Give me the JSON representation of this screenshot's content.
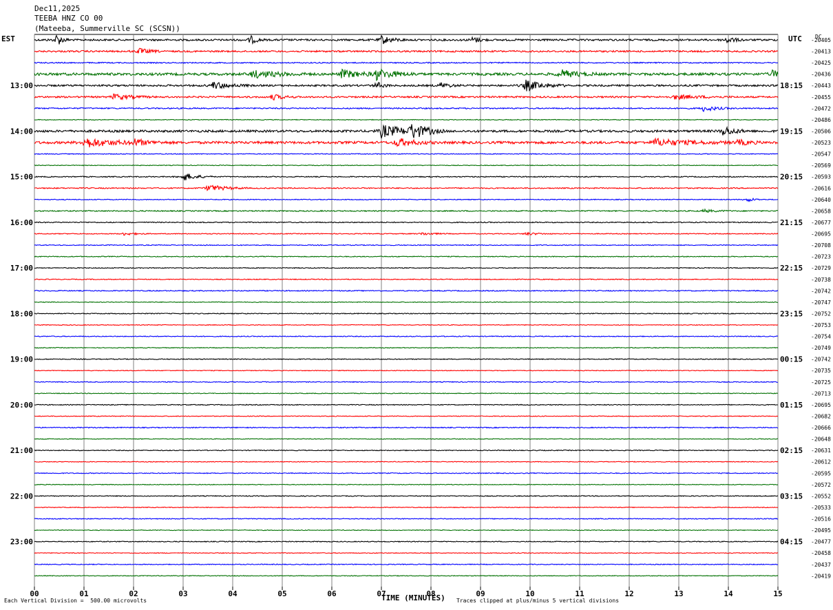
{
  "header": {
    "date": "Dec11,2025",
    "channel": "TEEBA HNZ CO 00",
    "station": "(Mateeba, Summerville SC (SCSN))"
  },
  "left_tz": "EST",
  "right_tz": "UTC",
  "dc_label": "DC",
  "left_times": [
    "13:00",
    "14:00",
    "15:00",
    "16:00",
    "17:00",
    "18:00",
    "19:00",
    "20:00",
    "21:00",
    "22:00",
    "23:00"
  ],
  "right_times": [
    "18:15",
    "19:15",
    "20:15",
    "21:15",
    "22:15",
    "23:15",
    "00:15",
    "01:15",
    "02:15",
    "03:15",
    "04:15"
  ],
  "footer": {
    "vertical_division": "Each Vertical Division =  500.00 microvolts",
    "xlabel": "TIME (MINUTES)",
    "clip_note": "Traces clipped at plus/minus 5 vertical divisions"
  },
  "colors": {
    "trace_cycle": [
      "#000000",
      "#ff0000",
      "#0000ff",
      "#007000"
    ],
    "grid": "#808080"
  },
  "chart_data": {
    "type": "line",
    "xlabel": "TIME (MINUTES)",
    "x_range": [
      0,
      15
    ],
    "x_ticks": [
      "00",
      "01",
      "02",
      "03",
      "04",
      "05",
      "06",
      "07",
      "08",
      "09",
      "10",
      "11",
      "12",
      "13",
      "14",
      "15"
    ],
    "dc_offsets": [
      -20405,
      -20413,
      -20425,
      -20436,
      -20443,
      -20455,
      -20472,
      -20486,
      -20506,
      -20523,
      -20547,
      -20569,
      -20593,
      -20616,
      -20640,
      -20658,
      -20677,
      -20695,
      -20708,
      -20723,
      -20729,
      -20738,
      -20742,
      -20747,
      -20752,
      -20753,
      -20754,
      -20749,
      -20742,
      -20735,
      -20725,
      -20713,
      -20695,
      -20682,
      -20666,
      -20648,
      -20631,
      -20612,
      -20595,
      -20572,
      -20552,
      -20533,
      -20516,
      -20495,
      -20477,
      -20458,
      -20437,
      -20419
    ],
    "noise_levels": [
      1.3,
      1.2,
      0.8,
      1.8,
      1.3,
      1.2,
      0.9,
      0.5,
      1.6,
      1.8,
      0.6,
      0.5,
      0.7,
      0.8,
      0.6,
      0.8,
      0.7,
      0.6,
      0.6,
      0.6,
      0.6,
      0.6,
      0.7,
      0.5,
      0.6,
      0.5,
      0.6,
      0.5,
      0.6,
      0.5,
      0.6,
      0.5,
      0.6,
      0.5,
      0.7,
      0.5,
      0.6,
      0.5,
      0.6,
      0.5,
      0.6,
      0.5,
      0.6,
      0.5,
      0.6,
      0.5,
      0.6,
      0.5
    ],
    "events": [
      {
        "row": 0,
        "minute": 0.45,
        "amplitude": 9,
        "duration": 0.25
      },
      {
        "row": 0,
        "minute": 4.35,
        "amplitude": 6,
        "duration": 0.3
      },
      {
        "row": 0,
        "minute": 7.0,
        "amplitude": 6,
        "duration": 0.5
      },
      {
        "row": 0,
        "minute": 8.85,
        "amplitude": 5,
        "duration": 0.3
      },
      {
        "row": 0,
        "minute": 13.95,
        "amplitude": 5,
        "duration": 0.4
      },
      {
        "row": 1,
        "minute": 2.1,
        "amplitude": 4,
        "duration": 0.5
      },
      {
        "row": 3,
        "minute": 4.4,
        "amplitude": 5,
        "duration": 1.2
      },
      {
        "row": 3,
        "minute": 6.2,
        "amplitude": 6,
        "duration": 0.8
      },
      {
        "row": 3,
        "minute": 6.9,
        "amplitude": 7,
        "duration": 0.9
      },
      {
        "row": 3,
        "minute": 10.6,
        "amplitude": 6,
        "duration": 0.8
      },
      {
        "row": 3,
        "minute": 14.9,
        "amplitude": 6,
        "duration": 0.3
      },
      {
        "row": 4,
        "minute": 3.6,
        "amplitude": 5,
        "duration": 0.8
      },
      {
        "row": 4,
        "minute": 6.9,
        "amplitude": 5,
        "duration": 0.3
      },
      {
        "row": 4,
        "minute": 8.2,
        "amplitude": 4,
        "duration": 0.4
      },
      {
        "row": 4,
        "minute": 9.9,
        "amplitude": 8,
        "duration": 0.8
      },
      {
        "row": 5,
        "minute": 1.6,
        "amplitude": 4,
        "duration": 0.8
      },
      {
        "row": 5,
        "minute": 4.8,
        "amplitude": 4,
        "duration": 0.5
      },
      {
        "row": 5,
        "minute": 12.9,
        "amplitude": 3,
        "duration": 1.2
      },
      {
        "row": 6,
        "minute": 13.5,
        "amplitude": 4,
        "duration": 0.6
      },
      {
        "row": 8,
        "minute": 7.0,
        "amplitude": 9,
        "duration": 1.1
      },
      {
        "row": 8,
        "minute": 7.6,
        "amplitude": 10,
        "duration": 0.7
      },
      {
        "row": 8,
        "minute": 13.9,
        "amplitude": 7,
        "duration": 0.5
      },
      {
        "row": 9,
        "minute": 1.0,
        "amplitude": 7,
        "duration": 1.2
      },
      {
        "row": 9,
        "minute": 2.0,
        "amplitude": 4,
        "duration": 0.8
      },
      {
        "row": 9,
        "minute": 7.3,
        "amplitude": 6,
        "duration": 0.8
      },
      {
        "row": 9,
        "minute": 12.5,
        "amplitude": 5,
        "duration": 1.6
      },
      {
        "row": 9,
        "minute": 14.2,
        "amplitude": 4,
        "duration": 0.5
      },
      {
        "row": 12,
        "minute": 3.0,
        "amplitude": 6,
        "duration": 0.6
      },
      {
        "row": 13,
        "minute": 3.5,
        "amplitude": 5,
        "duration": 0.8
      },
      {
        "row": 14,
        "minute": 14.4,
        "amplitude": 3,
        "duration": 0.3
      },
      {
        "row": 15,
        "minute": 13.5,
        "amplitude": 2,
        "duration": 0.6
      },
      {
        "row": 17,
        "minute": 1.8,
        "amplitude": 2,
        "duration": 0.6
      },
      {
        "row": 17,
        "minute": 7.8,
        "amplitude": 2,
        "duration": 0.6
      },
      {
        "row": 17,
        "minute": 9.9,
        "amplitude": 2,
        "duration": 0.6
      }
    ]
  }
}
